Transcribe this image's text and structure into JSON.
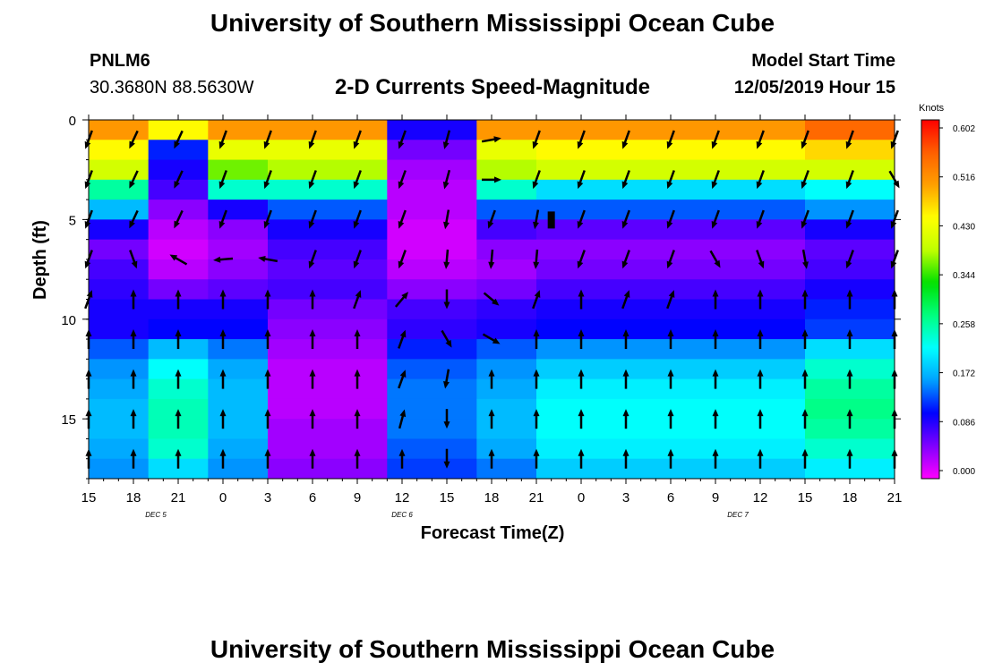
{
  "page": {
    "title_top": "University of Southern Mississippi Ocean Cube",
    "title_bottom": "University of Southern Mississippi Ocean Cube"
  },
  "station": {
    "id": "PNLM6",
    "coords": "30.3680N 88.5630W"
  },
  "model": {
    "label": "Model Start Time",
    "time": "12/05/2019 Hour 15"
  },
  "chart_data": {
    "type": "heatmap",
    "title": "2-D Currents Speed-Magnitude",
    "xlabel": "Forecast Time(Z)",
    "ylabel": "Depth (ft)",
    "x_hours": [
      0,
      54
    ],
    "x_tick_labels": [
      "15",
      "18",
      "21",
      "0",
      "3",
      "6",
      "9",
      "12",
      "15",
      "18",
      "21",
      "0",
      "3",
      "6",
      "9",
      "12",
      "15",
      "18",
      "21"
    ],
    "date_labels": [
      {
        "label": "DEC 5",
        "hour": 4.5
      },
      {
        "label": "DEC 6",
        "hour": 21
      },
      {
        "label": "DEC 7",
        "hour": 43.5
      }
    ],
    "ylim": [
      0,
      18
    ],
    "y_ticks": [
      0,
      5,
      10,
      15
    ],
    "colorbar": {
      "unit": "Knots",
      "min": 0.0,
      "max": 0.602,
      "tick_labels": [
        "0.602",
        "0.516",
        "0.430",
        "0.344",
        "0.258",
        "0.172",
        "0.086",
        "0.000"
      ],
      "colors": [
        "#ff00ff",
        "#8000ff",
        "#0000ff",
        "#00a0ff",
        "#00ffff",
        "#00ff80",
        "#00e000",
        "#c0ff00",
        "#ffff00",
        "#ffa000",
        "#ff6000",
        "#ff0000"
      ]
    },
    "depth_levels": [
      0,
      1,
      2,
      3,
      4,
      5,
      6,
      7,
      8,
      9,
      10,
      11,
      12,
      13,
      14,
      15,
      16,
      17,
      18
    ],
    "time_groups": [
      {
        "hours": [
          0,
          4
        ],
        "speeds": [
          0.5,
          0.44,
          0.4,
          0.26,
          0.18,
          0.1,
          0.06,
          0.08,
          0.09,
          0.1,
          0.1,
          0.14,
          0.16,
          0.17,
          0.18,
          0.18,
          0.17,
          0.16,
          0.16
        ]
      },
      {
        "hours": [
          4,
          8
        ],
        "speeds": [
          0.44,
          0.12,
          0.1,
          0.08,
          0.05,
          0.03,
          0.02,
          0.03,
          0.06,
          0.1,
          0.11,
          0.18,
          0.22,
          0.24,
          0.25,
          0.25,
          0.24,
          0.2,
          0.18
        ]
      },
      {
        "hours": [
          8,
          12
        ],
        "speeds": [
          0.5,
          0.42,
          0.36,
          0.24,
          0.1,
          0.05,
          0.04,
          0.05,
          0.07,
          0.1,
          0.11,
          0.15,
          0.17,
          0.18,
          0.18,
          0.18,
          0.17,
          0.16,
          0.15
        ]
      },
      {
        "hours": [
          12,
          20
        ],
        "speeds": [
          0.5,
          0.42,
          0.38,
          0.24,
          0.14,
          0.1,
          0.08,
          0.07,
          0.08,
          0.06,
          0.05,
          0.04,
          0.03,
          0.03,
          0.03,
          0.04,
          0.04,
          0.05,
          0.05
        ]
      },
      {
        "hours": [
          20,
          26
        ],
        "speeds": [
          0.1,
          0.06,
          0.04,
          0.03,
          0.03,
          0.02,
          0.02,
          0.03,
          0.05,
          0.08,
          0.09,
          0.12,
          0.14,
          0.15,
          0.15,
          0.15,
          0.14,
          0.13,
          0.13
        ]
      },
      {
        "hours": [
          26,
          30
        ],
        "speeds": [
          0.5,
          0.42,
          0.38,
          0.24,
          0.14,
          0.08,
          0.05,
          0.04,
          0.06,
          0.09,
          0.1,
          0.14,
          0.16,
          0.17,
          0.18,
          0.18,
          0.17,
          0.15,
          0.14
        ]
      },
      {
        "hours": [
          30,
          48
        ],
        "speeds": [
          0.5,
          0.44,
          0.4,
          0.2,
          0.14,
          0.07,
          0.05,
          0.06,
          0.08,
          0.1,
          0.11,
          0.16,
          0.19,
          0.21,
          0.22,
          0.22,
          0.21,
          0.19,
          0.17
        ]
      },
      {
        "hours": [
          48,
          54
        ],
        "speeds": [
          0.54,
          0.46,
          0.4,
          0.22,
          0.16,
          0.1,
          0.07,
          0.08,
          0.1,
          0.12,
          0.13,
          0.2,
          0.24,
          0.26,
          0.27,
          0.26,
          0.24,
          0.21,
          0.19
        ]
      }
    ],
    "arrow_depths": [
      1,
      3,
      5,
      7,
      9,
      11,
      13,
      15,
      17
    ],
    "arrow_directions_by_time_step": [
      {
        "hour": 0,
        "dirs": [
          200,
          200,
          200,
          200,
          20,
          0,
          0,
          0,
          0
        ]
      },
      {
        "hour": 3,
        "dirs": [
          205,
          205,
          205,
          160,
          0,
          0,
          0,
          0,
          0
        ]
      },
      {
        "hour": 6,
        "dirs": [
          205,
          205,
          205,
          300,
          0,
          0,
          0,
          0,
          0
        ]
      },
      {
        "hour": 9,
        "dirs": [
          200,
          200,
          200,
          265,
          0,
          0,
          0,
          0,
          0
        ]
      },
      {
        "hour": 12,
        "dirs": [
          200,
          200,
          200,
          280,
          0,
          0,
          0,
          0,
          0
        ]
      },
      {
        "hour": 15,
        "dirs": [
          200,
          200,
          200,
          200,
          0,
          0,
          0,
          0,
          0
        ]
      },
      {
        "hour": 18,
        "dirs": [
          200,
          200,
          200,
          200,
          20,
          0,
          0,
          0,
          0
        ]
      },
      {
        "hour": 21,
        "dirs": [
          200,
          200,
          200,
          200,
          40,
          20,
          20,
          15,
          0
        ]
      },
      {
        "hour": 24,
        "dirs": [
          195,
          195,
          190,
          185,
          180,
          150,
          190,
          180,
          180
        ]
      },
      {
        "hour": 27,
        "dirs": [
          80,
          90,
          200,
          185,
          130,
          120,
          0,
          0,
          0
        ]
      },
      {
        "hour": 30,
        "dirs": [
          200,
          200,
          190,
          185,
          20,
          0,
          0,
          0,
          0
        ]
      },
      {
        "hour": 33,
        "dirs": [
          200,
          200,
          200,
          200,
          0,
          0,
          0,
          0,
          0
        ]
      },
      {
        "hour": 36,
        "dirs": [
          200,
          200,
          200,
          200,
          20,
          0,
          0,
          0,
          0
        ]
      },
      {
        "hour": 39,
        "dirs": [
          200,
          200,
          200,
          200,
          20,
          0,
          0,
          0,
          0
        ]
      },
      {
        "hour": 42,
        "dirs": [
          200,
          200,
          200,
          150,
          0,
          0,
          0,
          0,
          0
        ]
      },
      {
        "hour": 45,
        "dirs": [
          200,
          200,
          200,
          160,
          0,
          0,
          0,
          0,
          0
        ]
      },
      {
        "hour": 48,
        "dirs": [
          200,
          200,
          200,
          170,
          0,
          0,
          0,
          0,
          0
        ]
      },
      {
        "hour": 51,
        "dirs": [
          200,
          200,
          200,
          200,
          0,
          0,
          0,
          0,
          0
        ]
      },
      {
        "hour": 54,
        "dirs": [
          200,
          150,
          200,
          200,
          0,
          0,
          0,
          0,
          0
        ]
      }
    ],
    "annotations": [
      {
        "kind": "marker",
        "hour": 31,
        "depth": 5
      }
    ]
  }
}
